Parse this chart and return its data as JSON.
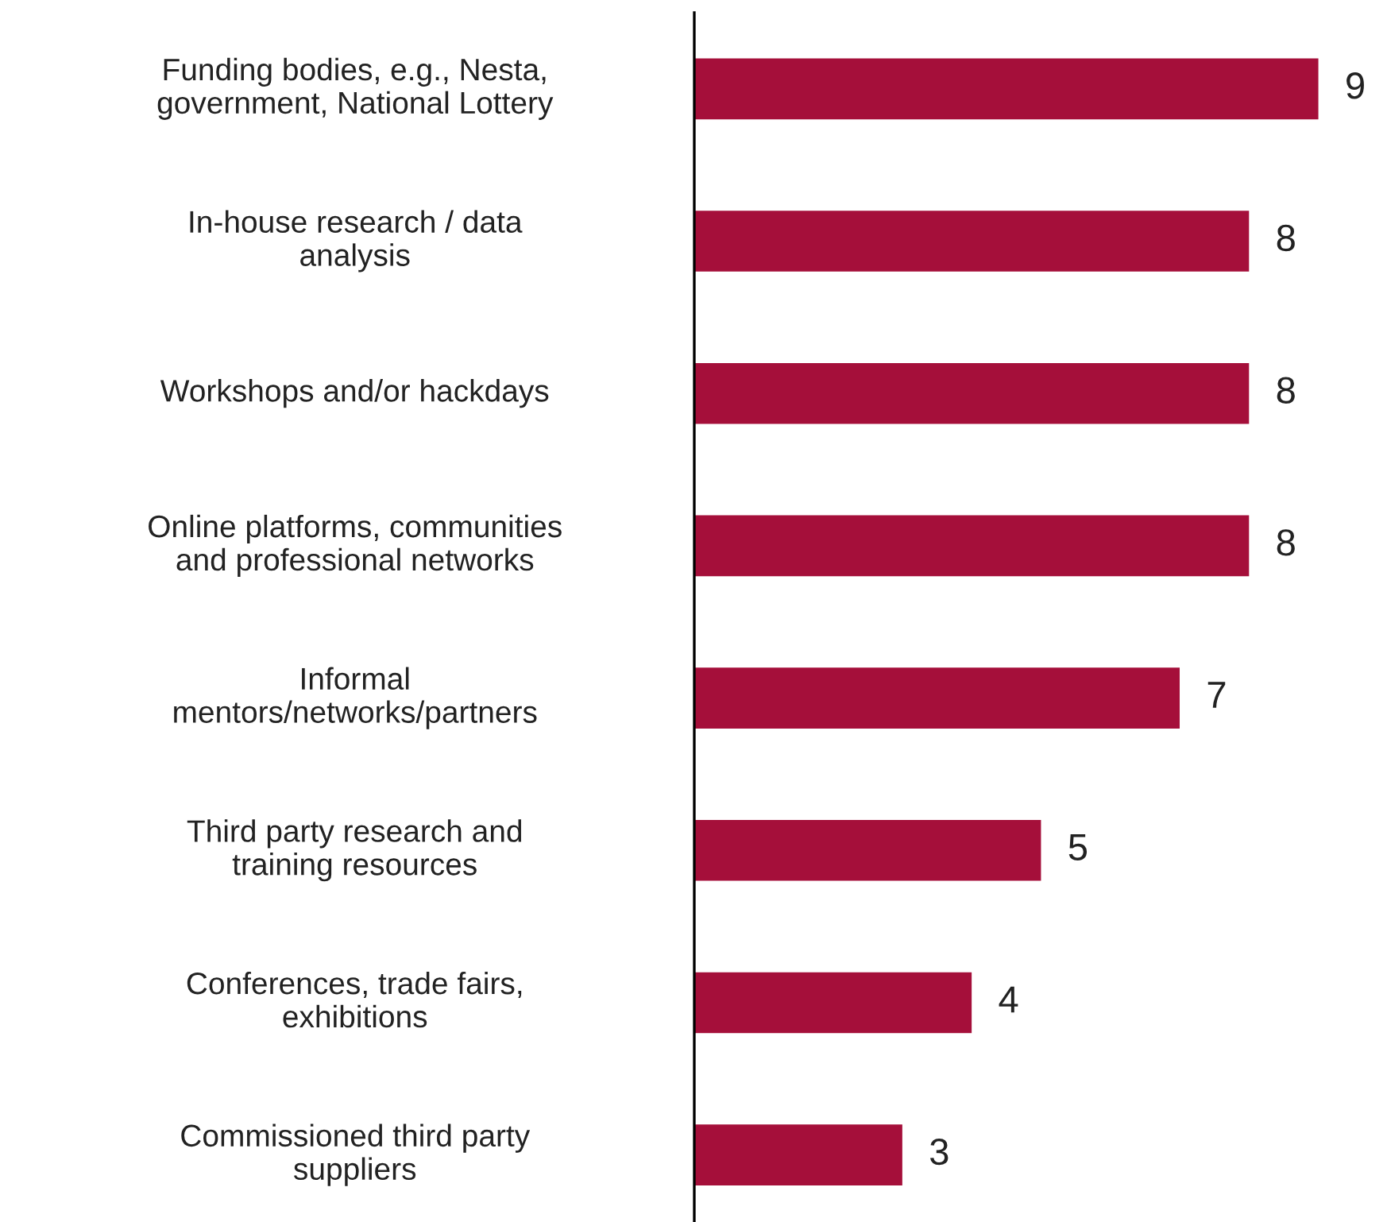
{
  "chart_data": {
    "type": "bar",
    "orientation": "horizontal",
    "data_labels": true,
    "grid": false,
    "legend": false,
    "tick_labels": "y",
    "categories": [
      "Funding bodies, e.g., Nesta,\ngovernment, National Lottery",
      "In-house research / data\nanalysis",
      "Workshops and/or hackdays",
      "Online platforms, communities\nand professional networks",
      "Informal\nmentors/networks/partners",
      "Third party research and\ntraining resources",
      "Conferences, trade fairs,\nexhibitions",
      "Commissioned third party\nsuppliers"
    ],
    "values": [
      9,
      8,
      8,
      8,
      7,
      5,
      4,
      3
    ],
    "color": "#a50f3a"
  }
}
